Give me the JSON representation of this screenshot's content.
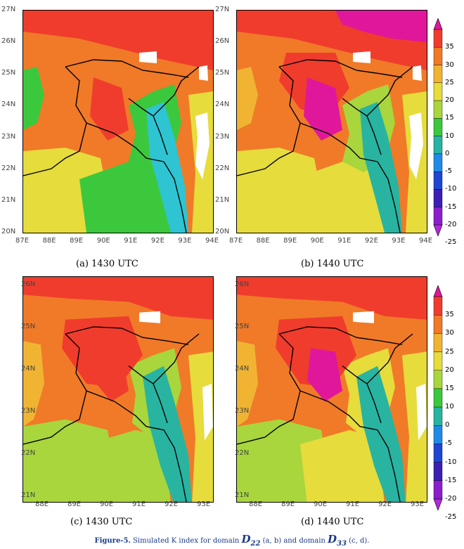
{
  "panels": [
    {
      "id": "a",
      "caption": "(a) 1430 UTC",
      "lat_ticks": [
        "27N",
        "26N",
        "25N",
        "24N",
        "23N",
        "22N",
        "21N",
        "20N"
      ],
      "lon_ticks": [
        "87E",
        "88E",
        "89E",
        "90E",
        "91E",
        "92E",
        "93E",
        "94E"
      ],
      "variant": "d22a"
    },
    {
      "id": "b",
      "caption": "(b) 1440 UTC",
      "lat_ticks": [
        "27N",
        "26N",
        "25N",
        "24N",
        "23N",
        "22N",
        "21N",
        "20N"
      ],
      "lon_ticks": [
        "87E",
        "88E",
        "89E",
        "90E",
        "91E",
        "92E",
        "93E",
        "94E"
      ],
      "variant": "d22b"
    },
    {
      "id": "c",
      "caption": "(c) 1430 UTC",
      "lat_ticks": [
        "26N",
        "25N",
        "24N",
        "23N",
        "22N",
        "21N"
      ],
      "lon_ticks": [
        "88E",
        "89E",
        "90E",
        "91E",
        "92E",
        "93E"
      ],
      "variant": "d33c"
    },
    {
      "id": "d",
      "caption": "(d) 1440 UTC",
      "lat_ticks": [
        "26N",
        "25N",
        "24N",
        "23N",
        "22N",
        "21N"
      ],
      "lon_ticks": [
        "88E",
        "89E",
        "90E",
        "91E",
        "92E",
        "93E"
      ],
      "variant": "d33d"
    }
  ],
  "colorbar": {
    "labels": [
      "35",
      "30",
      "25",
      "20",
      "15",
      "10",
      "0",
      "-5",
      "-10",
      "-15",
      "-20",
      "-25"
    ],
    "colors": [
      "#e0179b",
      "#f03c2d",
      "#f07a28",
      "#f0b432",
      "#e6dc3c",
      "#a8d63c",
      "#3cc83c",
      "#28b4a0",
      "#1e8ce6",
      "#1e46d2",
      "#3c1eb4",
      "#8c1ecc",
      "#b428dc"
    ]
  },
  "figure_caption": {
    "label": "Figure-5.",
    "text1": " Simulated K index for domain ",
    "dom1": "D",
    "dom1_sub": "22",
    "text2": " (a, b) and domain ",
    "dom2": "D",
    "dom2_sub": "33",
    "text3": " (c, d)."
  }
}
